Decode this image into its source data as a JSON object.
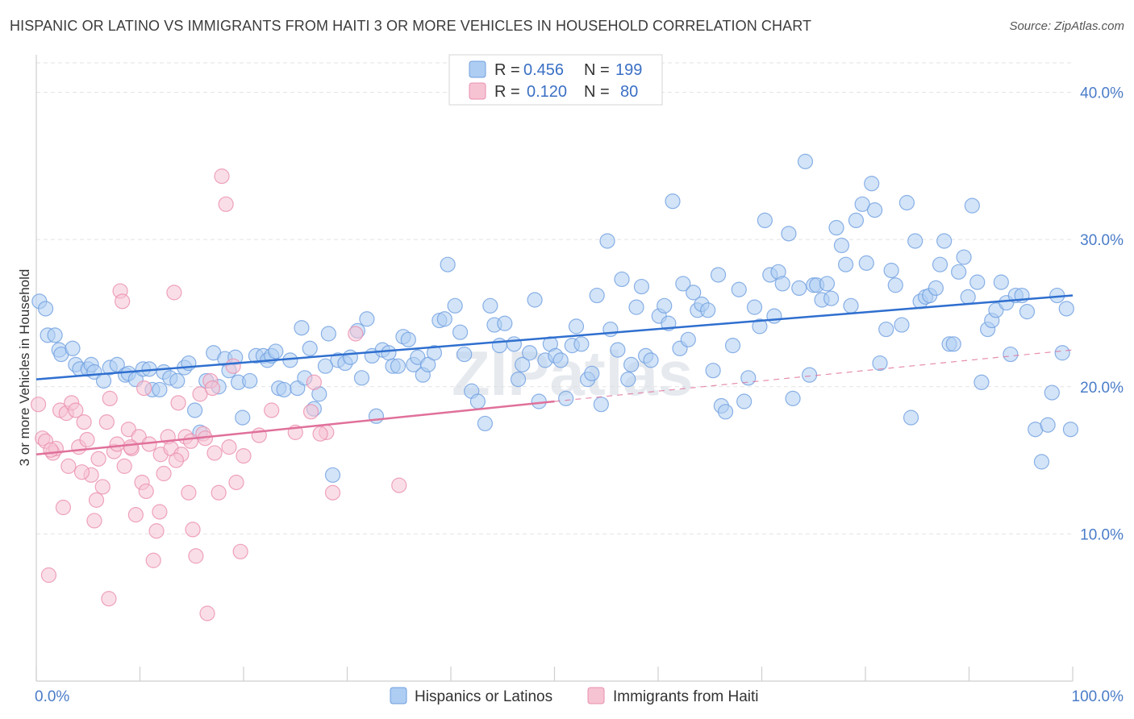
{
  "title": "HISPANIC OR LATINO VS IMMIGRANTS FROM HAITI 3 OR MORE VEHICLES IN HOUSEHOLD CORRELATION CHART",
  "source": "Source: ZipAtlas.com",
  "watermark": "ZIPatlas",
  "colors": {
    "blue": "#6f9fe0",
    "blue_fill": "#aecdf2",
    "blue_line": "#2f6fcf",
    "pink": "#ea8fae",
    "pink_fill": "#f6c3d3",
    "pink_line": "#e0709a"
  },
  "legend": {
    "r_label": "R =",
    "n_label": "N =",
    "rows": [
      {
        "r": "0.456",
        "n": "199"
      },
      {
        "r": "0.120",
        "n": "80"
      }
    ]
  },
  "chart_data": {
    "type": "scatter",
    "ylabel": "3 or more Vehicles in Household",
    "xlim": [
      0,
      100
    ],
    "ylim": [
      0,
      42
    ],
    "x_tick_labels": [
      "0.0%",
      "100.0%"
    ],
    "y_ticks": [
      10,
      20,
      30,
      40
    ],
    "y_tick_labels": [
      "10.0%",
      "20.0%",
      "30.0%",
      "40.0%"
    ],
    "grid": true,
    "legend_position": "top-center",
    "series": [
      {
        "name": "Hispanics or Latinos",
        "trend": {
          "x": [
            0,
            100
          ],
          "y": [
            20.5,
            26.2
          ]
        },
        "points": [
          [
            0.3,
            25.8
          ],
          [
            0.9,
            25.3
          ],
          [
            1.1,
            23.5
          ],
          [
            1.8,
            23.5
          ],
          [
            2.2,
            22.5
          ],
          [
            2.4,
            22.2
          ],
          [
            3.5,
            22.6
          ],
          [
            3.8,
            21.5
          ],
          [
            4.2,
            21.2
          ],
          [
            5.0,
            21.2
          ],
          [
            5.3,
            21.5
          ],
          [
            5.6,
            21.0
          ],
          [
            6.5,
            20.4
          ],
          [
            7.1,
            21.3
          ],
          [
            7.8,
            21.5
          ],
          [
            8.6,
            20.8
          ],
          [
            8.9,
            20.9
          ],
          [
            9.6,
            20.5
          ],
          [
            10.3,
            21.2
          ],
          [
            10.9,
            21.2
          ],
          [
            11.2,
            19.8
          ],
          [
            11.9,
            19.8
          ],
          [
            12.3,
            21.0
          ],
          [
            12.9,
            20.6
          ],
          [
            13.6,
            20.4
          ],
          [
            14.3,
            21.3
          ],
          [
            14.7,
            21.6
          ],
          [
            15.3,
            18.4
          ],
          [
            15.8,
            16.9
          ],
          [
            16.4,
            20.4
          ],
          [
            17.1,
            22.3
          ],
          [
            17.6,
            20.0
          ],
          [
            18.2,
            21.9
          ],
          [
            18.6,
            21.1
          ],
          [
            19.2,
            22.0
          ],
          [
            19.5,
            20.3
          ],
          [
            19.9,
            17.9
          ],
          [
            20.6,
            20.4
          ],
          [
            21.2,
            22.1
          ],
          [
            21.9,
            22.1
          ],
          [
            22.3,
            21.8
          ],
          [
            22.7,
            22.1
          ],
          [
            23.1,
            22.4
          ],
          [
            23.4,
            19.9
          ],
          [
            23.9,
            19.8
          ],
          [
            24.5,
            21.8
          ],
          [
            25.2,
            19.9
          ],
          [
            25.6,
            24.0
          ],
          [
            25.9,
            20.6
          ],
          [
            26.4,
            22.6
          ],
          [
            26.8,
            18.5
          ],
          [
            27.3,
            19.5
          ],
          [
            27.9,
            21.4
          ],
          [
            28.2,
            23.6
          ],
          [
            28.6,
            14.0
          ],
          [
            29.1,
            21.8
          ],
          [
            29.8,
            21.6
          ],
          [
            30.3,
            22.0
          ],
          [
            31.0,
            23.8
          ],
          [
            31.4,
            20.6
          ],
          [
            31.9,
            24.6
          ],
          [
            32.4,
            22.1
          ],
          [
            32.8,
            18.0
          ],
          [
            33.4,
            22.5
          ],
          [
            34.0,
            22.3
          ],
          [
            34.4,
            21.4
          ],
          [
            34.9,
            21.4
          ],
          [
            35.4,
            23.4
          ],
          [
            35.9,
            23.2
          ],
          [
            36.4,
            21.5
          ],
          [
            36.8,
            22.0
          ],
          [
            37.3,
            20.8
          ],
          [
            37.8,
            21.5
          ],
          [
            38.4,
            22.3
          ],
          [
            38.9,
            24.5
          ],
          [
            39.4,
            24.6
          ],
          [
            39.7,
            28.3
          ],
          [
            40.4,
            25.5
          ],
          [
            40.9,
            23.7
          ],
          [
            41.3,
            22.2
          ],
          [
            42.0,
            19.7
          ],
          [
            42.6,
            19.0
          ],
          [
            43.3,
            17.5
          ],
          [
            43.8,
            25.5
          ],
          [
            44.2,
            24.2
          ],
          [
            44.7,
            22.8
          ],
          [
            45.2,
            24.3
          ],
          [
            46.1,
            22.9
          ],
          [
            46.5,
            20.5
          ],
          [
            46.9,
            21.5
          ],
          [
            47.6,
            22.3
          ],
          [
            48.1,
            25.9
          ],
          [
            48.5,
            19.0
          ],
          [
            49.1,
            21.8
          ],
          [
            49.6,
            22.9
          ],
          [
            50.1,
            22.1
          ],
          [
            50.6,
            21.8
          ],
          [
            51.1,
            19.2
          ],
          [
            51.7,
            22.8
          ],
          [
            52.1,
            24.1
          ],
          [
            52.6,
            22.9
          ],
          [
            53.2,
            20.5
          ],
          [
            53.6,
            20.9
          ],
          [
            54.1,
            26.2
          ],
          [
            54.5,
            18.8
          ],
          [
            55.1,
            29.9
          ],
          [
            55.4,
            23.9
          ],
          [
            56.1,
            22.5
          ],
          [
            56.5,
            27.3
          ],
          [
            57.1,
            20.5
          ],
          [
            57.4,
            21.5
          ],
          [
            57.9,
            25.4
          ],
          [
            58.4,
            26.8
          ],
          [
            58.8,
            22.1
          ],
          [
            59.3,
            21.8
          ],
          [
            60.1,
            24.8
          ],
          [
            60.6,
            25.5
          ],
          [
            61.0,
            24.3
          ],
          [
            61.4,
            32.6
          ],
          [
            62.1,
            22.6
          ],
          [
            62.4,
            27.0
          ],
          [
            62.9,
            23.2
          ],
          [
            63.4,
            26.4
          ],
          [
            63.8,
            25.2
          ],
          [
            64.2,
            25.6
          ],
          [
            64.8,
            25.2
          ],
          [
            65.3,
            21.1
          ],
          [
            65.8,
            27.6
          ],
          [
            66.1,
            18.7
          ],
          [
            66.5,
            18.3
          ],
          [
            67.2,
            22.8
          ],
          [
            67.8,
            26.6
          ],
          [
            68.3,
            19.0
          ],
          [
            68.7,
            20.6
          ],
          [
            69.3,
            25.4
          ],
          [
            69.8,
            24.1
          ],
          [
            70.3,
            31.3
          ],
          [
            70.8,
            27.6
          ],
          [
            71.2,
            24.8
          ],
          [
            71.6,
            27.8
          ],
          [
            72.0,
            27.0
          ],
          [
            72.6,
            30.4
          ],
          [
            73.0,
            19.2
          ],
          [
            73.6,
            26.7
          ],
          [
            74.2,
            35.3
          ],
          [
            74.6,
            20.8
          ],
          [
            75.0,
            26.9
          ],
          [
            75.3,
            26.9
          ],
          [
            75.8,
            25.9
          ],
          [
            76.3,
            27.0
          ],
          [
            76.7,
            26.0
          ],
          [
            77.2,
            30.8
          ],
          [
            77.7,
            29.6
          ],
          [
            78.1,
            28.3
          ],
          [
            78.6,
            25.5
          ],
          [
            79.1,
            31.3
          ],
          [
            79.7,
            32.4
          ],
          [
            80.1,
            28.4
          ],
          [
            80.6,
            33.8
          ],
          [
            80.9,
            32.0
          ],
          [
            81.4,
            21.6
          ],
          [
            82.0,
            23.9
          ],
          [
            82.5,
            27.9
          ],
          [
            82.9,
            26.9
          ],
          [
            83.5,
            24.2
          ],
          [
            84.0,
            32.5
          ],
          [
            84.4,
            17.9
          ],
          [
            84.8,
            29.9
          ],
          [
            85.3,
            25.8
          ],
          [
            85.8,
            26.1
          ],
          [
            86.2,
            26.2
          ],
          [
            86.8,
            26.7
          ],
          [
            87.2,
            28.3
          ],
          [
            87.6,
            29.9
          ],
          [
            88.1,
            22.9
          ],
          [
            88.5,
            22.9
          ],
          [
            89.0,
            27.8
          ],
          [
            89.5,
            28.8
          ],
          [
            89.9,
            26.1
          ],
          [
            90.3,
            32.3
          ],
          [
            90.8,
            27.1
          ],
          [
            91.2,
            20.3
          ],
          [
            91.8,
            23.9
          ],
          [
            92.2,
            24.5
          ],
          [
            92.6,
            25.2
          ],
          [
            93.1,
            27.1
          ],
          [
            93.6,
            25.7
          ],
          [
            94.0,
            22.2
          ],
          [
            94.5,
            26.2
          ],
          [
            95.1,
            26.2
          ],
          [
            95.6,
            25.1
          ],
          [
            96.4,
            17.1
          ],
          [
            97.0,
            14.9
          ],
          [
            97.6,
            17.4
          ],
          [
            98.0,
            19.6
          ],
          [
            98.5,
            26.2
          ],
          [
            99.0,
            22.3
          ],
          [
            99.4,
            25.3
          ],
          [
            99.8,
            17.1
          ]
        ]
      },
      {
        "name": "Immigrants from Haiti",
        "trend": {
          "x": [
            0,
            50
          ],
          "y": [
            15.4,
            19.0
          ]
        },
        "trend_ext": {
          "x": [
            50,
            100
          ],
          "y": [
            19.0,
            22.5
          ]
        },
        "points": [
          [
            0.2,
            18.8
          ],
          [
            0.6,
            16.5
          ],
          [
            0.9,
            16.3
          ],
          [
            1.2,
            7.2
          ],
          [
            1.6,
            15.5
          ],
          [
            1.9,
            15.8
          ],
          [
            2.3,
            18.4
          ],
          [
            2.6,
            11.8
          ],
          [
            2.9,
            18.2
          ],
          [
            3.4,
            18.9
          ],
          [
            3.8,
            18.4
          ],
          [
            4.1,
            15.9
          ],
          [
            4.6,
            17.6
          ],
          [
            4.9,
            16.4
          ],
          [
            5.3,
            14.0
          ],
          [
            5.6,
            10.9
          ],
          [
            6.0,
            15.1
          ],
          [
            6.4,
            13.2
          ],
          [
            6.8,
            17.6
          ],
          [
            7.1,
            19.2
          ],
          [
            7.5,
            15.6
          ],
          [
            7.8,
            16.1
          ],
          [
            8.1,
            26.5
          ],
          [
            8.5,
            14.6
          ],
          [
            8.9,
            17.1
          ],
          [
            9.2,
            15.8
          ],
          [
            9.6,
            11.3
          ],
          [
            9.9,
            16.6
          ],
          [
            10.2,
            13.5
          ],
          [
            10.6,
            12.9
          ],
          [
            10.9,
            16.1
          ],
          [
            11.3,
            8.2
          ],
          [
            11.6,
            10.2
          ],
          [
            12.0,
            15.4
          ],
          [
            12.3,
            14.1
          ],
          [
            12.7,
            16.6
          ],
          [
            13.0,
            15.8
          ],
          [
            13.3,
            26.4
          ],
          [
            13.7,
            18.9
          ],
          [
            14.0,
            15.4
          ],
          [
            14.4,
            16.6
          ],
          [
            14.7,
            12.8
          ],
          [
            15.1,
            10.3
          ],
          [
            15.4,
            8.5
          ],
          [
            15.8,
            19.5
          ],
          [
            16.1,
            16.8
          ],
          [
            16.5,
            4.6
          ],
          [
            16.8,
            20.4
          ],
          [
            17.2,
            15.5
          ],
          [
            17.6,
            12.8
          ],
          [
            17.9,
            34.3
          ],
          [
            18.3,
            32.4
          ],
          [
            18.6,
            15.9
          ],
          [
            19.0,
            21.4
          ],
          [
            19.3,
            13.5
          ],
          [
            19.7,
            8.8
          ],
          [
            20.0,
            15.3
          ],
          [
            21.5,
            16.7
          ],
          [
            22.7,
            18.4
          ],
          [
            25.0,
            16.9
          ],
          [
            26.5,
            18.3
          ],
          [
            26.8,
            20.3
          ],
          [
            28.0,
            16.9
          ],
          [
            28.6,
            12.8
          ],
          [
            30.8,
            23.6
          ],
          [
            35.0,
            13.3
          ],
          [
            1.4,
            15.7
          ],
          [
            3.1,
            14.6
          ],
          [
            4.4,
            14.2
          ],
          [
            5.8,
            12.3
          ],
          [
            7.0,
            5.6
          ],
          [
            8.3,
            25.8
          ],
          [
            9.1,
            15.9
          ],
          [
            10.4,
            19.9
          ],
          [
            11.9,
            11.5
          ],
          [
            13.5,
            15.0
          ],
          [
            14.9,
            16.3
          ],
          [
            16.3,
            16.5
          ],
          [
            17.0,
            19.9
          ],
          [
            27.4,
            16.8
          ]
        ]
      }
    ]
  },
  "bottom_legend": [
    "Hispanics or Latinos",
    "Immigrants from Haiti"
  ]
}
